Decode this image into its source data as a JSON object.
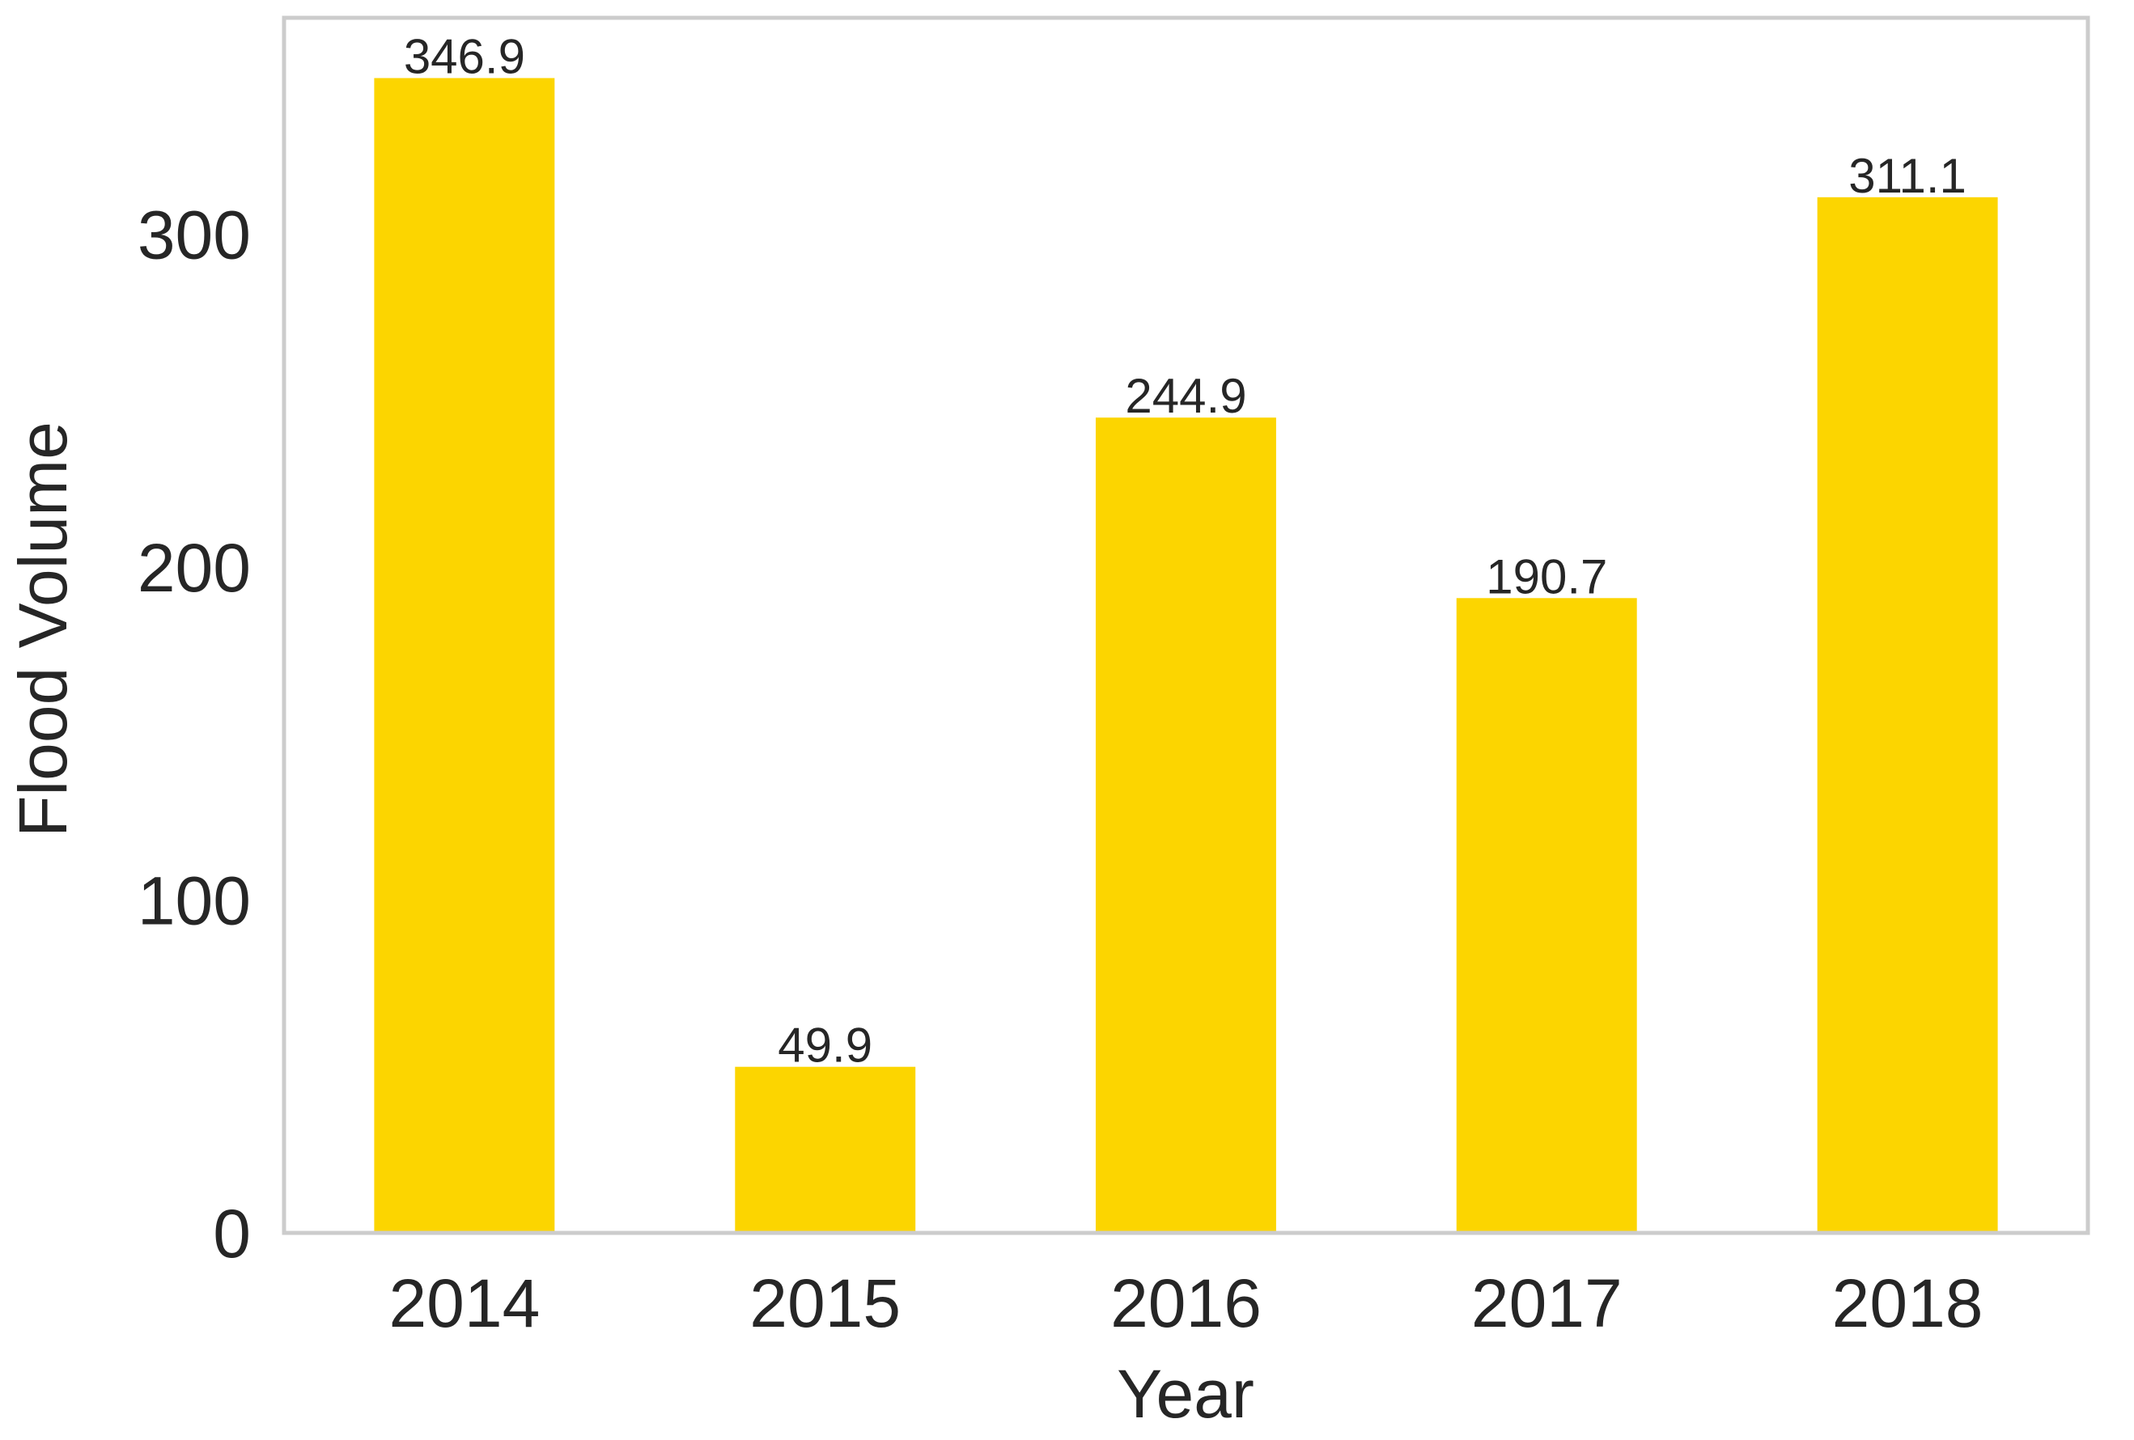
{
  "chart_data": {
    "type": "bar",
    "title": "",
    "xlabel": "Year",
    "ylabel": "Flood Volume",
    "categories": [
      "2014",
      "2015",
      "2016",
      "2017",
      "2018"
    ],
    "values": [
      346.9,
      49.9,
      244.9,
      190.7,
      311.1
    ],
    "data_labels": [
      "346.9",
      "49.9",
      "244.9",
      "190.7",
      "311.1"
    ],
    "ylim": [
      0,
      365
    ],
    "yticks": [
      0,
      100,
      200,
      300
    ],
    "ytick_labels": [
      "0",
      "100",
      "200",
      "300"
    ],
    "grid": false,
    "legend": "none",
    "bar_color": "#FCD500",
    "frame_color": "#CCCCCC",
    "text_color": "#262626"
  }
}
